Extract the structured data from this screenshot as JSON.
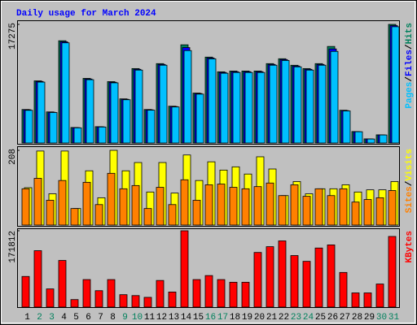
{
  "chart_data": [
    {
      "type": "bar",
      "title": "Daily usage for March 2024",
      "title_color": "#0000ff",
      "ylim": [
        0,
        17275
      ],
      "yticks": [
        17275
      ],
      "legend_separator": "/",
      "series": [
        {
          "name": "Hits",
          "color": "#00805c",
          "values": [
            4880,
            9050,
            4530,
            14890,
            2260,
            9410,
            2380,
            8940,
            6430,
            10840,
            4880,
            11560,
            5360,
            14300,
            7270,
            12510,
            10370,
            10480,
            10480,
            10480,
            11560,
            12270,
            11320,
            10840,
            11560,
            14060,
            4770,
            1670,
            600,
            1190,
            17275
          ]
        },
        {
          "name": "Files",
          "color": "#0000ff",
          "values": [
            4840,
            8960,
            4480,
            14740,
            2240,
            9320,
            2360,
            8850,
            6370,
            10730,
            4830,
            11440,
            5310,
            13900,
            7200,
            12380,
            10270,
            10380,
            10380,
            10380,
            11440,
            12150,
            11210,
            10730,
            11440,
            13700,
            4720,
            1650,
            590,
            1180,
            17100
          ]
        },
        {
          "name": "Pages",
          "color": "#00c0ff",
          "values": [
            4760,
            8870,
            4440,
            14590,
            2210,
            9220,
            2330,
            8760,
            6300,
            10620,
            4780,
            11330,
            5250,
            13460,
            7120,
            12260,
            10160,
            10270,
            10270,
            10270,
            11330,
            12020,
            11090,
            10620,
            11330,
            13340,
            4670,
            1640,
            580,
            1170,
            16930
          ]
        }
      ]
    },
    {
      "type": "bar",
      "ylim": [
        0,
        208
      ],
      "yticks": [
        208
      ],
      "legend_separator": "/",
      "series": [
        {
          "name": "Visits",
          "color": "#ffff00",
          "values": [
            104,
            206,
            87,
            206,
            46,
            151,
            76,
            208,
            151,
            174,
            92,
            174,
            89,
            195,
            124,
            176,
            153,
            162,
            142,
            190,
            156,
            82,
            121,
            87,
            101,
            101,
            112,
            92,
            98,
            98,
            121
          ]
        },
        {
          "name": "Sites",
          "color": "#ff8000",
          "values": [
            101,
            130,
            69,
            124,
            46,
            119,
            57,
            144,
            101,
            110,
            46,
            105,
            57,
            126,
            69,
            112,
            114,
            105,
            101,
            107,
            117,
            82,
            112,
            80,
            101,
            82,
            101,
            64,
            71,
            76,
            96
          ]
        }
      ]
    },
    {
      "type": "bar",
      "ylim": [
        0,
        171812
      ],
      "yticks": [
        171812
      ],
      "categories": [
        "1",
        "2",
        "3",
        "4",
        "5",
        "6",
        "7",
        "8",
        "9",
        "10",
        "11",
        "12",
        "13",
        "14",
        "15",
        "16",
        "17",
        "18",
        "19",
        "20",
        "21",
        "22",
        "23",
        "24",
        "25",
        "26",
        "27",
        "28",
        "29",
        "30",
        "31"
      ],
      "x_label_colors": [
        "#000000",
        "#00805c",
        "#00805c",
        "#000000",
        "#000000",
        "#000000",
        "#000000",
        "#000000",
        "#00805c",
        "#00805c",
        "#000000",
        "#000000",
        "#000000",
        "#000000",
        "#000000",
        "#00805c",
        "#00805c",
        "#000000",
        "#000000",
        "#000000",
        "#000000",
        "#000000",
        "#00805c",
        "#00805c",
        "#000000",
        "#000000",
        "#000000",
        "#000000",
        "#000000",
        "#00805c",
        "#00805c"
      ],
      "series": [
        {
          "name": "KBytes",
          "color": "#ff0000",
          "values": [
            69000,
            127000,
            41000,
            105000,
            17000,
            62000,
            37000,
            62000,
            28000,
            26000,
            22000,
            60000,
            34000,
            171812,
            62000,
            71000,
            62000,
            56000,
            56000,
            123000,
            136000,
            149000,
            116000,
            103000,
            133000,
            140000,
            78000,
            32000,
            32000,
            52000,
            159000
          ]
        }
      ]
    }
  ]
}
